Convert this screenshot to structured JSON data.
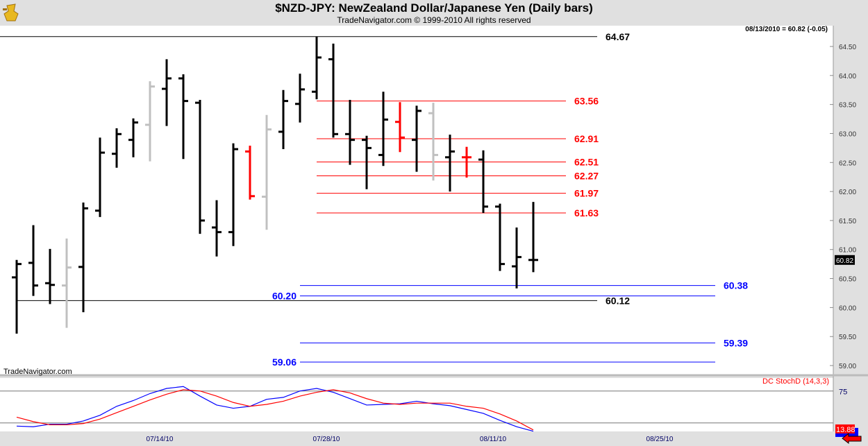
{
  "header": {
    "title": "$NZD-JPY:  NewZealand Dollar/Japanese Yen  (Daily bars)",
    "subtitle": "TradeNavigator.com © 1999-2010 All rights reserved",
    "last_quote": "08/13/2010 = 60.82 (-0.05)",
    "watermark": "TradeNavigator.com"
  },
  "colors": {
    "up": "#000000",
    "gray": "#c0c0c0",
    "red": "#ff0000",
    "blue": "#0000ff",
    "stoch_k": "#0000ff",
    "stoch_d": "#ff0000"
  },
  "chart_data": [
    {
      "type": "ohlc",
      "title": "$NZD-JPY Daily bars",
      "ylim": [
        58.85,
        64.85
      ],
      "yticks": [
        "59.00",
        "59.50",
        "60.00",
        "60.50",
        "61.00",
        "61.50",
        "62.00",
        "62.50",
        "63.00",
        "63.50",
        "64.00",
        "64.50"
      ],
      "xticks": [
        {
          "label": "07/14/10",
          "bar": 10
        },
        {
          "label": "07/28/10",
          "bar": 20
        },
        {
          "label": "08/11/10",
          "bar": 30
        },
        {
          "label": "08/25/10",
          "bar": 40
        }
      ],
      "bars": [
        {
          "o": 60.52,
          "h": 60.82,
          "l": 59.55,
          "c": 60.75,
          "color": "up"
        },
        {
          "o": 60.77,
          "h": 61.42,
          "l": 60.2,
          "c": 60.38,
          "color": "up"
        },
        {
          "o": 60.42,
          "h": 61.01,
          "l": 60.06,
          "c": 60.39,
          "color": "up"
        },
        {
          "o": 60.38,
          "h": 61.19,
          "l": 59.65,
          "c": 60.69,
          "color": "gray"
        },
        {
          "o": 60.7,
          "h": 61.81,
          "l": 59.92,
          "c": 61.71,
          "color": "up"
        },
        {
          "o": 61.67,
          "h": 62.93,
          "l": 61.56,
          "c": 62.67,
          "color": "up"
        },
        {
          "o": 62.65,
          "h": 63.09,
          "l": 62.41,
          "c": 62.99,
          "color": "up"
        },
        {
          "o": 62.89,
          "h": 63.26,
          "l": 62.59,
          "c": 63.19,
          "color": "up"
        },
        {
          "o": 63.15,
          "h": 63.9,
          "l": 62.52,
          "c": 63.81,
          "color": "gray"
        },
        {
          "o": 63.77,
          "h": 64.28,
          "l": 63.13,
          "c": 63.95,
          "color": "up"
        },
        {
          "o": 63.95,
          "h": 64.02,
          "l": 62.56,
          "c": 63.56,
          "color": "up"
        },
        {
          "o": 63.53,
          "h": 63.58,
          "l": 61.27,
          "c": 61.5,
          "color": "up"
        },
        {
          "o": 61.38,
          "h": 61.85,
          "l": 60.88,
          "c": 61.3,
          "color": "up"
        },
        {
          "o": 61.3,
          "h": 62.83,
          "l": 61.06,
          "c": 62.73,
          "color": "up"
        },
        {
          "o": 62.69,
          "h": 62.79,
          "l": 61.86,
          "c": 61.92,
          "color": "red"
        },
        {
          "o": 61.91,
          "h": 63.32,
          "l": 61.34,
          "c": 63.07,
          "color": "gray"
        },
        {
          "o": 63.03,
          "h": 63.75,
          "l": 62.73,
          "c": 63.56,
          "color": "up"
        },
        {
          "o": 63.51,
          "h": 64.03,
          "l": 63.19,
          "c": 63.76,
          "color": "up"
        },
        {
          "o": 63.72,
          "h": 64.67,
          "l": 63.59,
          "c": 64.31,
          "color": "up"
        },
        {
          "o": 64.28,
          "h": 64.55,
          "l": 62.93,
          "c": 62.99,
          "color": "up"
        },
        {
          "o": 62.99,
          "h": 63.58,
          "l": 62.46,
          "c": 62.89,
          "color": "up"
        },
        {
          "o": 62.89,
          "h": 62.96,
          "l": 62.04,
          "c": 62.75,
          "color": "up"
        },
        {
          "o": 62.63,
          "h": 63.72,
          "l": 62.44,
          "c": 63.24,
          "color": "up"
        },
        {
          "o": 63.2,
          "h": 63.54,
          "l": 62.68,
          "c": 62.93,
          "color": "red"
        },
        {
          "o": 62.89,
          "h": 63.48,
          "l": 62.34,
          "c": 63.39,
          "color": "up"
        },
        {
          "o": 63.35,
          "h": 63.53,
          "l": 62.19,
          "c": 62.63,
          "color": "gray"
        },
        {
          "o": 62.59,
          "h": 62.98,
          "l": 62.0,
          "c": 62.69,
          "color": "up"
        },
        {
          "o": 62.59,
          "h": 62.77,
          "l": 62.24,
          "c": 62.59,
          "color": "red"
        },
        {
          "o": 62.55,
          "h": 62.71,
          "l": 61.63,
          "c": 61.74,
          "color": "up"
        },
        {
          "o": 61.74,
          "h": 61.79,
          "l": 60.63,
          "c": 60.75,
          "color": "up"
        },
        {
          "o": 60.71,
          "h": 61.38,
          "l": 60.33,
          "c": 60.87,
          "color": "up"
        },
        {
          "o": 60.82,
          "h": 61.82,
          "l": 60.61,
          "c": 60.82,
          "color": "up"
        }
      ],
      "levels": [
        {
          "value": "64.67",
          "color": "up",
          "from_bar": -1,
          "label_side": "right"
        },
        {
          "value": "60.12",
          "color": "up",
          "from_bar": 0,
          "label_side": "right"
        },
        {
          "value": "63.56",
          "color": "red",
          "from_bar": 18,
          "label_side": "right"
        },
        {
          "value": "62.91",
          "color": "red",
          "from_bar": 18,
          "label_side": "right"
        },
        {
          "value": "62.51",
          "color": "red",
          "from_bar": 18,
          "label_side": "right"
        },
        {
          "value": "62.27",
          "color": "red",
          "from_bar": 18,
          "label_side": "right"
        },
        {
          "value": "61.97",
          "color": "red",
          "from_bar": 18,
          "label_side": "right"
        },
        {
          "value": "61.63",
          "color": "red",
          "from_bar": 18,
          "label_side": "right"
        },
        {
          "value": "60.38",
          "color": "blue",
          "from_bar": 17,
          "label_side": "right"
        },
        {
          "value": "60.20",
          "color": "blue",
          "from_bar": 17,
          "label_side": "left"
        },
        {
          "value": "59.39",
          "color": "blue",
          "from_bar": 17,
          "label_side": "right"
        },
        {
          "value": "59.06",
          "color": "blue",
          "from_bar": 17,
          "label_side": "left"
        }
      ],
      "last_price": "60.82"
    },
    {
      "type": "line",
      "title": "DC StochD (14,3,3)",
      "ylim": [
        8,
        97
      ],
      "yticks": [
        "75"
      ],
      "reference_lines": [
        75,
        25
      ],
      "series": [
        {
          "name": "K",
          "color": "stoch_k",
          "values": [
            20,
            19,
            23,
            23,
            28,
            37,
            51,
            60,
            71,
            79,
            82,
            67,
            53,
            48,
            51,
            62,
            65,
            75,
            79,
            73,
            63,
            53,
            54,
            55,
            59,
            55,
            52,
            46,
            40,
            29,
            19,
            12
          ]
        },
        {
          "name": "D",
          "color": "stoch_d",
          "values": [
            34,
            27,
            22,
            22,
            24,
            31,
            41,
            51,
            61,
            70,
            77,
            75,
            67,
            57,
            51,
            54,
            59,
            67,
            73,
            77,
            72,
            63,
            56,
            54,
            56,
            56,
            56,
            51,
            48,
            39,
            28,
            14
          ]
        }
      ],
      "last_value": "13.88"
    }
  ]
}
